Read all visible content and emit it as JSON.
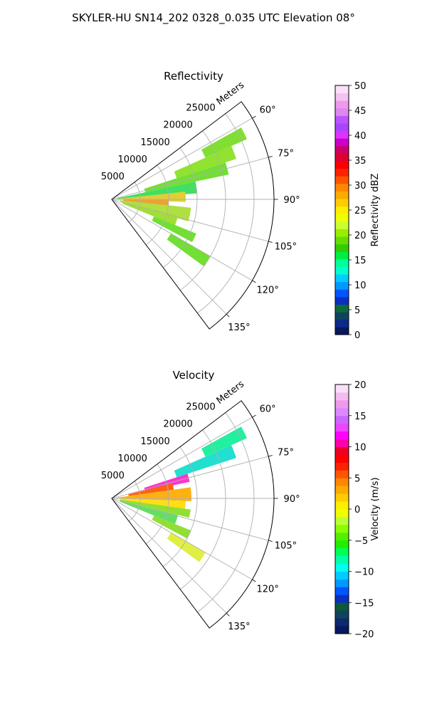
{
  "title": "SKYLER-HU  SN14_202  0328_0.035 UTC Elevation 08°",
  "chart_data": [
    {
      "type": "heatmap",
      "subtype": "polar-sector",
      "title": "Reflectivity",
      "range_axis_label": "Meters",
      "range_ticks": [
        "5000",
        "10000",
        "15000",
        "20000",
        "25000"
      ],
      "azimuth_ticks": [
        "60°",
        "75°",
        "90°",
        "105°",
        "120°",
        "135°"
      ],
      "azimuth_range": [
        53,
        143
      ],
      "range_max": 28500,
      "grid": true,
      "colorbar": {
        "label": "Reflectivity dBZ",
        "min": 0,
        "max": 50,
        "ticks": [
          "0",
          "5",
          "10",
          "15",
          "20",
          "25",
          "30",
          "35",
          "40",
          "45",
          "50"
        ],
        "palette": [
          "#071761",
          "#0a2a8a",
          "#10445e",
          "#0d6b3a",
          "#0b2fc0",
          "#0055ff",
          "#0099ff",
          "#00ccff",
          "#00ffcc",
          "#00ff99",
          "#00ee44",
          "#33cc00",
          "#66dd00",
          "#99ee00",
          "#ccff33",
          "#eeff00",
          "#ffee00",
          "#ffcc00",
          "#ffaa00",
          "#ff8800",
          "#ff5500",
          "#ff2200",
          "#ff0000",
          "#dd0033",
          "#cc0066",
          "#cc00cc",
          "#dd33ff",
          "#aa44ff",
          "#bb55ff",
          "#dd88ee",
          "#ee99ee",
          "#f5c2f0",
          "#fbe0fa"
        ]
      },
      "features": [
        {
          "az_start": 61,
          "az_end": 66,
          "r_start": 18000,
          "r_end": 26000,
          "color": "#77dd22"
        },
        {
          "az_start": 66,
          "az_end": 72,
          "r_start": 12000,
          "r_end": 23000,
          "color": "#88e020"
        },
        {
          "az_start": 72,
          "az_end": 78,
          "r_start": 6000,
          "r_end": 21000,
          "color": "#66dd22"
        },
        {
          "az_start": 78,
          "az_end": 86,
          "r_start": 1000,
          "r_end": 15000,
          "color": "#33dd55"
        },
        {
          "az_start": 84,
          "az_end": 92,
          "r_start": 1500,
          "r_end": 13000,
          "color": "#ddcc22"
        },
        {
          "az_start": 90,
          "az_end": 98,
          "r_start": 2000,
          "r_end": 10000,
          "color": "#ee9922"
        },
        {
          "az_start": 96,
          "az_end": 106,
          "r_start": 1500,
          "r_end": 14000,
          "color": "#aadd33"
        },
        {
          "az_start": 104,
          "az_end": 112,
          "r_start": 2000,
          "r_end": 12000,
          "color": "#99dd22"
        },
        {
          "az_start": 112,
          "az_end": 118,
          "r_start": 8000,
          "r_end": 16000,
          "color": "#66dd22"
        },
        {
          "az_start": 120,
          "az_end": 126,
          "r_start": 12000,
          "r_end": 20000,
          "color": "#66dd22"
        }
      ]
    },
    {
      "type": "heatmap",
      "subtype": "polar-sector",
      "title": "Velocity",
      "range_axis_label": "Meters",
      "range_ticks": [
        "5000",
        "10000",
        "15000",
        "20000",
        "25000"
      ],
      "azimuth_ticks": [
        "60°",
        "75°",
        "90°",
        "105°",
        "120°",
        "135°"
      ],
      "azimuth_range": [
        53,
        143
      ],
      "range_max": 28500,
      "grid": true,
      "colorbar": {
        "label": "Velocity (m/s)",
        "min": -20,
        "max": 20,
        "ticks": [
          "−20",
          "−15",
          "−10",
          "−5",
          "0",
          "5",
          "10",
          "15",
          "20"
        ],
        "palette": [
          "#071761",
          "#0c2a6e",
          "#10445e",
          "#0d5a3a",
          "#0b2fc0",
          "#0055ff",
          "#0099ff",
          "#00ccff",
          "#00ffee",
          "#00ffaa",
          "#00ff55",
          "#22ee00",
          "#55ee00",
          "#88ff00",
          "#bbff33",
          "#eeff00",
          "#ffee00",
          "#ffcc00",
          "#ffaa00",
          "#ff8800",
          "#ff5500",
          "#ff2200",
          "#ff0000",
          "#ee0022",
          "#ff00aa",
          "#ff00ff",
          "#ee44ff",
          "#cc66ff",
          "#dd88ff",
          "#ee99ee",
          "#f5bbf0",
          "#fbe0fa"
        ]
      },
      "features": [
        {
          "az_start": 61,
          "az_end": 66,
          "r_start": 18000,
          "r_end": 26000,
          "color": "#11ee99"
        },
        {
          "az_start": 66,
          "az_end": 72,
          "r_start": 12000,
          "r_end": 23000,
          "color": "#11ddcc"
        },
        {
          "az_start": 72,
          "az_end": 78,
          "r_start": 6000,
          "r_end": 14000,
          "color": "#ff22cc"
        },
        {
          "az_start": 76,
          "az_end": 82,
          "r_start": 3000,
          "r_end": 11000,
          "color": "#ff5500"
        },
        {
          "az_start": 82,
          "az_end": 92,
          "r_start": 1000,
          "r_end": 14000,
          "color": "#ffaa00"
        },
        {
          "az_start": 92,
          "az_end": 98,
          "r_start": 1500,
          "r_end": 13000,
          "color": "#ffdd00"
        },
        {
          "az_start": 98,
          "az_end": 104,
          "r_start": 1500,
          "r_end": 14000,
          "color": "#88dd22"
        },
        {
          "az_start": 104,
          "az_end": 112,
          "r_start": 1500,
          "r_end": 12000,
          "color": "#55dd55"
        },
        {
          "az_start": 112,
          "az_end": 118,
          "r_start": 8000,
          "r_end": 15000,
          "color": "#88dd22"
        },
        {
          "az_start": 120,
          "az_end": 126,
          "r_start": 12000,
          "r_end": 19000,
          "color": "#ddee33"
        }
      ]
    }
  ]
}
